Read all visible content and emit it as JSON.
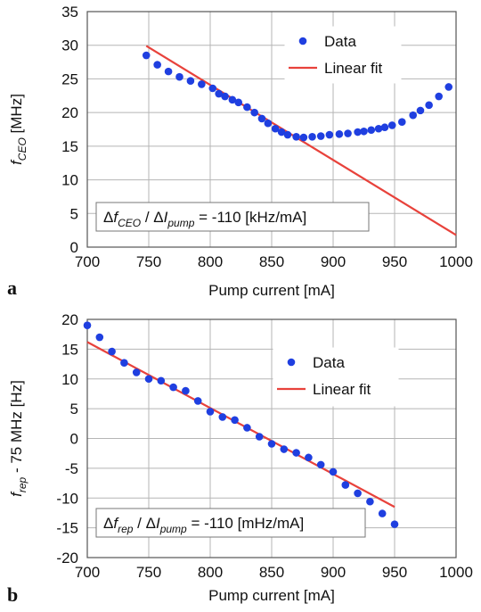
{
  "chart_data": [
    {
      "type": "scatter",
      "panel_letter": "a",
      "xlabel": "Pump current [mA]",
      "ylabel_main": "f",
      "ylabel_sub": "CEO",
      "ylabel_unit": "[MHz]",
      "xlim": [
        700,
        1000
      ],
      "ylim": [
        0,
        35
      ],
      "xticks": [
        700,
        750,
        800,
        850,
        900,
        950,
        1000
      ],
      "yticks": [
        0,
        5,
        10,
        15,
        20,
        25,
        30,
        35
      ],
      "grid": true,
      "legend_position": "top-right",
      "series": [
        {
          "name": "Data",
          "kind": "scatter",
          "color": "#1f3fe0",
          "x": [
            748,
            757,
            766,
            775,
            784,
            793,
            802,
            807,
            812,
            818,
            823,
            830,
            836,
            842,
            847,
            853,
            858,
            863,
            870,
            876,
            883,
            890,
            897,
            905,
            912,
            920,
            925,
            931,
            937,
            942,
            948,
            956,
            965,
            971,
            978,
            986,
            994
          ],
          "y": [
            28.5,
            27.1,
            26.1,
            25.3,
            24.7,
            24.2,
            23.6,
            22.8,
            22.4,
            21.9,
            21.5,
            20.8,
            20.0,
            19.1,
            18.4,
            17.6,
            17.1,
            16.7,
            16.4,
            16.3,
            16.4,
            16.5,
            16.7,
            16.8,
            16.9,
            17.1,
            17.2,
            17.4,
            17.6,
            17.8,
            18.1,
            18.6,
            19.6,
            20.3,
            21.1,
            22.4,
            23.8
          ]
        },
        {
          "name": "Linear fit",
          "kind": "line",
          "color": "#e8423b",
          "x": [
            748,
            1000
          ],
          "y": [
            29.9,
            1.8
          ]
        }
      ],
      "annotation": {
        "delta": "Δ",
        "f": "f",
        "f_sub": "CEO",
        "sep": " / Δ",
        "i": "I",
        "i_sub": "pump",
        "value": " = -110 [kHz/mA]"
      }
    },
    {
      "type": "scatter",
      "panel_letter": "b",
      "xlabel": "Pump current [mA]",
      "ylabel_main": "f",
      "ylabel_sub": "rep",
      "ylabel_unit": "- 75 MHz [Hz]",
      "xlim": [
        700,
        1000
      ],
      "ylim": [
        -20,
        20
      ],
      "xticks": [
        700,
        750,
        800,
        850,
        900,
        950,
        1000
      ],
      "yticks": [
        -20,
        -15,
        -10,
        -5,
        0,
        5,
        10,
        15,
        20
      ],
      "grid": true,
      "legend_position": "top-right",
      "series": [
        {
          "name": "Data",
          "kind": "scatter",
          "color": "#1f3fe0",
          "x": [
            700,
            710,
            720,
            730,
            740,
            750,
            760,
            770,
            780,
            790,
            800,
            810,
            820,
            830,
            840,
            850,
            860,
            870,
            880,
            890,
            900,
            910,
            920,
            930,
            940,
            950
          ],
          "y": [
            19.0,
            17.0,
            14.6,
            12.7,
            11.1,
            10.0,
            9.7,
            8.6,
            8.0,
            6.3,
            4.5,
            3.6,
            3.1,
            1.8,
            0.3,
            -0.9,
            -1.8,
            -2.4,
            -3.2,
            -4.4,
            -5.6,
            -7.8,
            -9.2,
            -10.6,
            -12.6,
            -14.4
          ]
        },
        {
          "name": "Linear fit",
          "kind": "line",
          "color": "#e8423b",
          "x": [
            700,
            950
          ],
          "y": [
            16.2,
            -11.5
          ]
        }
      ],
      "annotation": {
        "delta": "Δ",
        "f": "f",
        "f_sub": "rep",
        "sep": " / Δ",
        "i": "I",
        "i_sub": "pump",
        "value": " = -110 [mHz/mA]"
      }
    }
  ]
}
